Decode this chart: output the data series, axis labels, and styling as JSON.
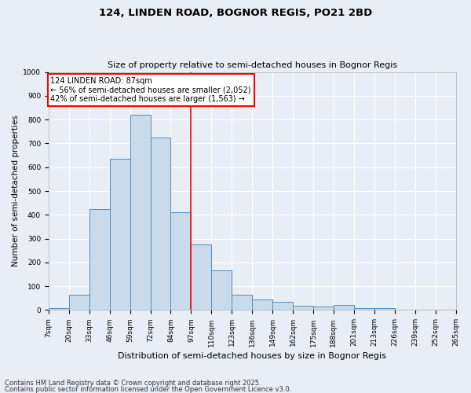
{
  "title1": "124, LINDEN ROAD, BOGNOR REGIS, PO21 2BD",
  "title2": "Size of property relative to semi-detached houses in Bognor Regis",
  "xlabel": "Distribution of semi-detached houses by size in Bognor Regis",
  "ylabel": "Number of semi-detached properties",
  "categories": [
    "7sqm",
    "20sqm",
    "33sqm",
    "46sqm",
    "59sqm",
    "72sqm",
    "84sqm",
    "97sqm",
    "110sqm",
    "123sqm",
    "136sqm",
    "149sqm",
    "162sqm",
    "175sqm",
    "188sqm",
    "201sqm",
    "213sqm",
    "226sqm",
    "239sqm",
    "252sqm",
    "265sqm"
  ],
  "bar_values": [
    7,
    65,
    425,
    635,
    820,
    725,
    410,
    275,
    168,
    65,
    43,
    35,
    17,
    15,
    20,
    8,
    9,
    2,
    1,
    1
  ],
  "bar_color_fill": "#c9daea",
  "bar_color_edge": "#4f8fbf",
  "property_line_bar_index": 6,
  "annotation_text": "124 LINDEN ROAD: 87sqm\n← 56% of semi-detached houses are smaller (2,052)\n42% of semi-detached houses are larger (1,563) →",
  "ylim": [
    0,
    1000
  ],
  "yticks": [
    0,
    100,
    200,
    300,
    400,
    500,
    600,
    700,
    800,
    900,
    1000
  ],
  "footer1": "Contains HM Land Registry data © Crown copyright and database right 2025.",
  "footer2": "Contains public sector information licensed under the Open Government Licence v3.0.",
  "bg_color": "#e8eef5",
  "plot_bg_color": "#e8eef5",
  "grid_color": "#ffffff",
  "title1_fontsize": 9.5,
  "title2_fontsize": 8,
  "tick_fontsize": 6.5,
  "ylabel_fontsize": 7.5,
  "xlabel_fontsize": 8,
  "annotation_fontsize": 7,
  "footer_fontsize": 6
}
